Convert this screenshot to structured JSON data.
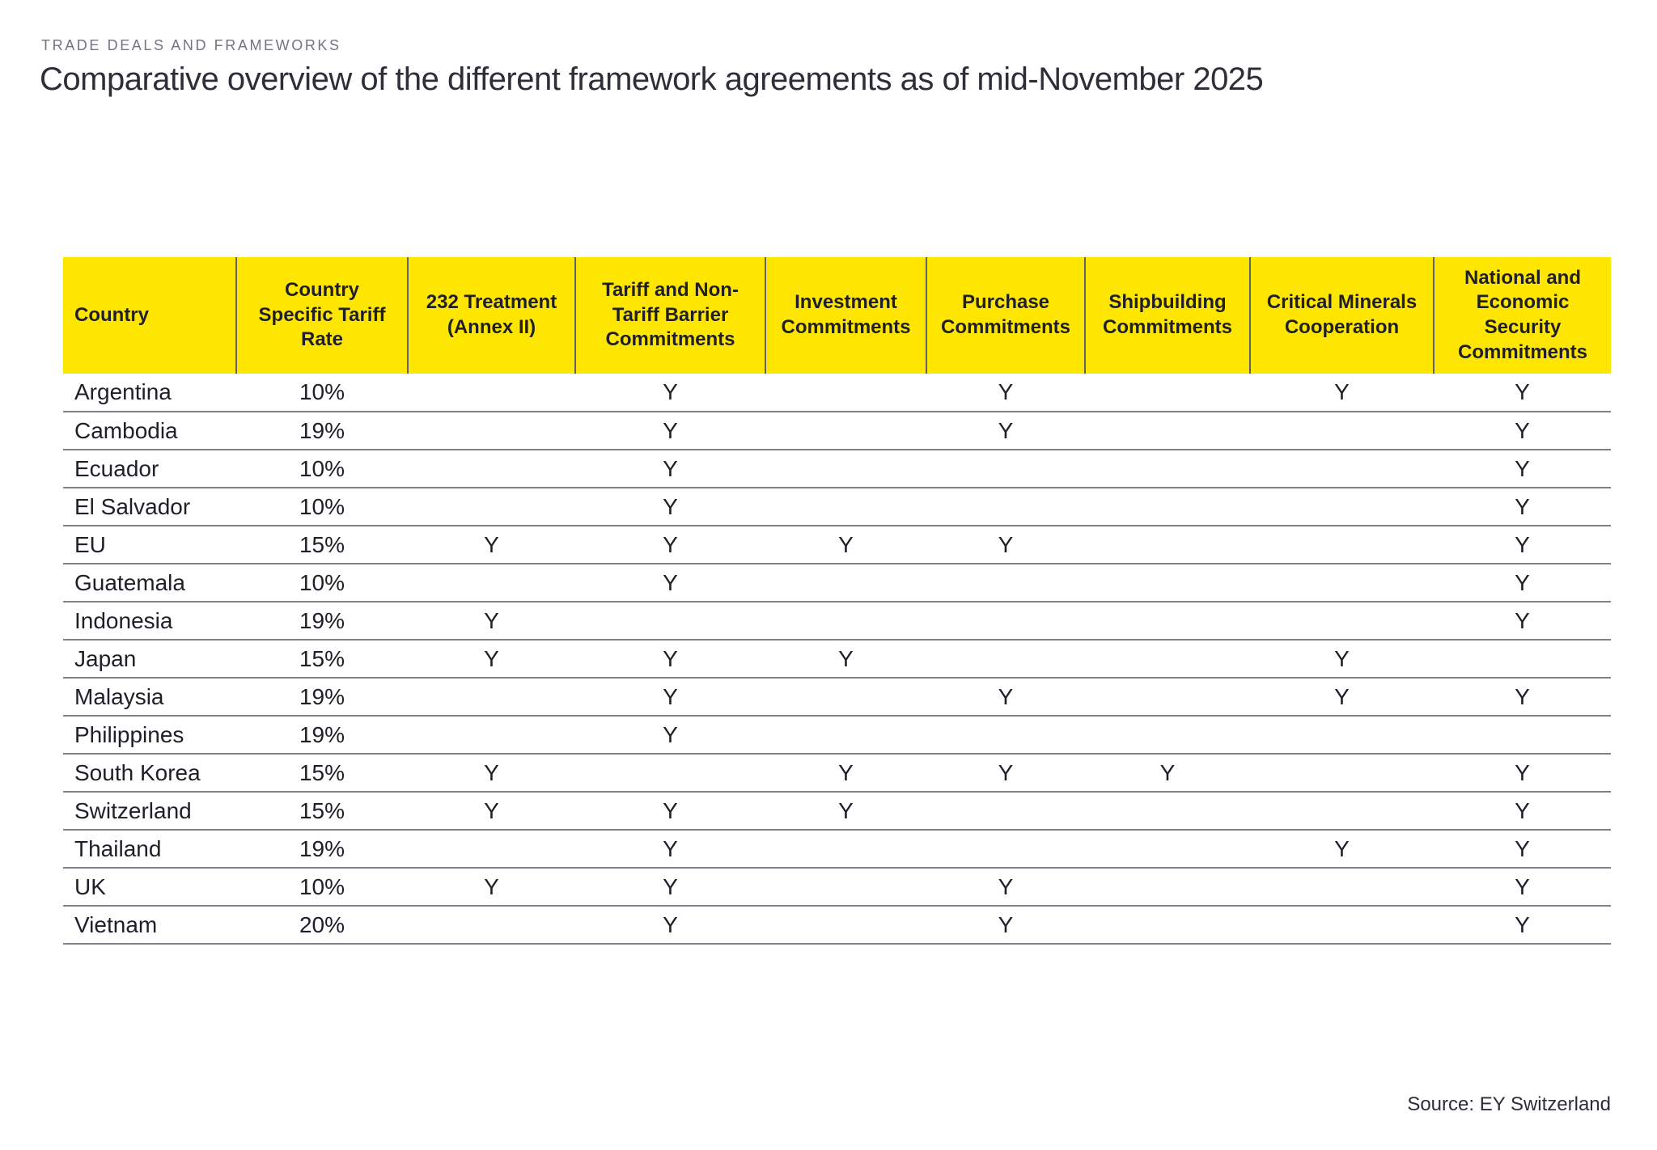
{
  "page": {
    "eyebrow": "TRADE DEALS AND FRAMEWORKS",
    "title": "Comparative overview of the different framework agreements as of mid-November 2025",
    "source": "Source: EY Switzerland"
  },
  "colors": {
    "header_yellow": "#FFE600",
    "text_dark": "#2E2E38",
    "eyebrow_gray": "#747480",
    "header_divider_gray": "#62626C",
    "row_divider_gray": "#80808A"
  },
  "chart_data": {
    "type": "table",
    "title": "Comparative overview of the different framework agreements as of mid-November 2025",
    "columns": [
      "Country",
      "Country Specific Tariff Rate",
      "232 Treatment (Annex II)",
      "Tariff and Non-Tariff Barrier Commitments",
      "Investment Commitments",
      "Purchase Commitments",
      "Shipbuilding Commitments",
      "Critical Minerals Cooperation",
      "National and Economic Security Commitments"
    ],
    "rows": [
      [
        "Argentina",
        "10%",
        "",
        "Y",
        "",
        "Y",
        "",
        "Y",
        "Y"
      ],
      [
        "Cambodia",
        "19%",
        "",
        "Y",
        "",
        "Y",
        "",
        "",
        "Y"
      ],
      [
        "Ecuador",
        "10%",
        "",
        "Y",
        "",
        "",
        "",
        "",
        "Y"
      ],
      [
        "El Salvador",
        "10%",
        "",
        "Y",
        "",
        "",
        "",
        "",
        "Y"
      ],
      [
        "EU",
        "15%",
        "Y",
        "Y",
        "Y",
        "Y",
        "",
        "",
        "Y"
      ],
      [
        "Guatemala",
        "10%",
        "",
        "Y",
        "",
        "",
        "",
        "",
        "Y"
      ],
      [
        "Indonesia",
        "19%",
        "Y",
        "",
        "",
        "",
        "",
        "",
        "Y"
      ],
      [
        "Japan",
        "15%",
        "Y",
        "Y",
        "Y",
        "",
        "",
        "Y",
        ""
      ],
      [
        "Malaysia",
        "19%",
        "",
        "Y",
        "",
        "Y",
        "",
        "Y",
        "Y"
      ],
      [
        "Philippines",
        "19%",
        "",
        "Y",
        "",
        "",
        "",
        "",
        ""
      ],
      [
        "South Korea",
        "15%",
        "Y",
        "",
        "Y",
        "Y",
        "Y",
        "",
        "Y"
      ],
      [
        "Switzerland",
        "15%",
        "Y",
        "Y",
        "Y",
        "",
        "",
        "",
        "Y"
      ],
      [
        "Thailand",
        "19%",
        "",
        "Y",
        "",
        "",
        "",
        "Y",
        "Y"
      ],
      [
        "UK",
        "10%",
        "Y",
        "Y",
        "",
        "Y",
        "",
        "",
        "Y"
      ],
      [
        "Vietnam",
        "20%",
        "",
        "Y",
        "",
        "Y",
        "",
        "",
        "Y"
      ]
    ]
  }
}
